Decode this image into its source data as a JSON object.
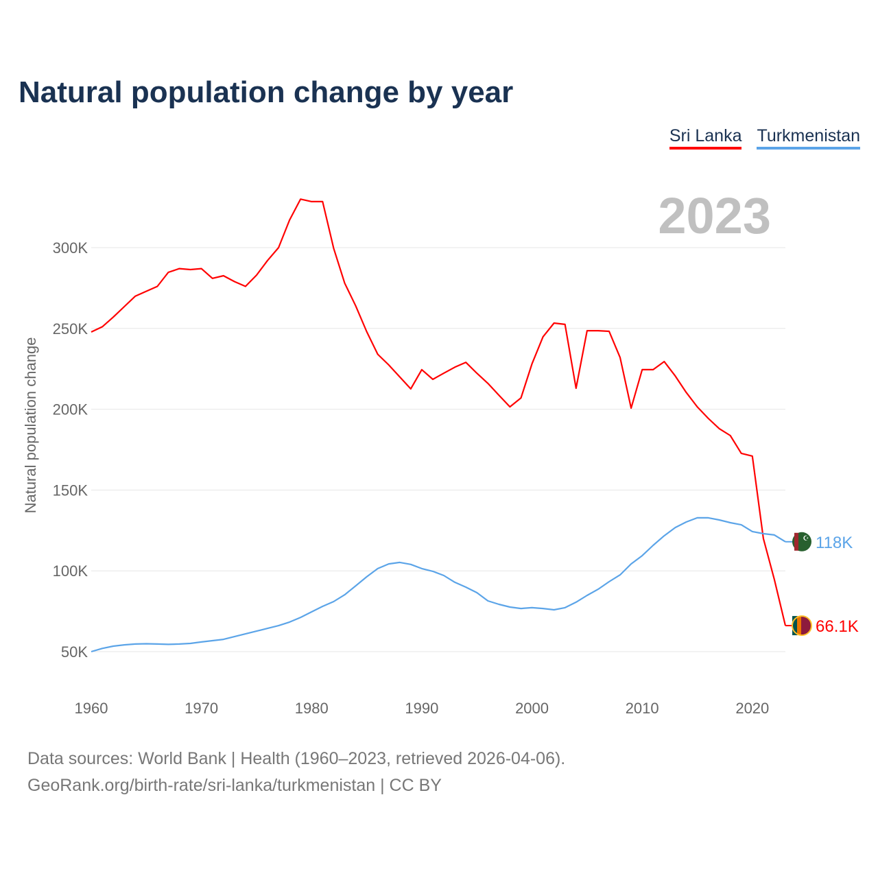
{
  "chart_data": {
    "type": "line",
    "title": "Natural population change by year",
    "xlabel": "",
    "ylabel": "Natural population change",
    "xlim": [
      1960,
      2023
    ],
    "ylim": [
      30000,
      340000
    ],
    "x_ticks": [
      1960,
      1970,
      1980,
      1990,
      2000,
      2010,
      2020
    ],
    "x_tick_labels": [
      "1960",
      "1970",
      "1980",
      "1990",
      "2000",
      "2010",
      "2020"
    ],
    "y_ticks": [
      50000,
      100000,
      150000,
      200000,
      250000,
      300000
    ],
    "y_tick_labels": [
      "50K",
      "100K",
      "150K",
      "200K",
      "250K",
      "300K"
    ],
    "grid": true,
    "legend_position": "top-right",
    "year_label": "2023",
    "x": [
      1960,
      1961,
      1962,
      1963,
      1964,
      1965,
      1966,
      1967,
      1968,
      1969,
      1970,
      1971,
      1972,
      1973,
      1974,
      1975,
      1976,
      1977,
      1978,
      1979,
      1980,
      1981,
      1982,
      1983,
      1984,
      1985,
      1986,
      1987,
      1988,
      1989,
      1990,
      1991,
      1992,
      1993,
      1994,
      1995,
      1996,
      1997,
      1998,
      1999,
      2000,
      2001,
      2002,
      2003,
      2004,
      2005,
      2006,
      2007,
      2008,
      2009,
      2010,
      2011,
      2012,
      2013,
      2014,
      2015,
      2016,
      2017,
      2018,
      2019,
      2020,
      2021,
      2022,
      2023
    ],
    "series": [
      {
        "name": "Sri Lanka",
        "color": "#ff0000",
        "end_label": "66.1K",
        "values": [
          247800,
          251000,
          257000,
          263500,
          270000,
          273000,
          276000,
          284700,
          287000,
          286400,
          287000,
          281000,
          282600,
          279000,
          276000,
          283000,
          292000,
          300000,
          317000,
          330000,
          328500,
          328500,
          299600,
          278000,
          264000,
          248000,
          234000,
          227400,
          220000,
          212600,
          224500,
          218500,
          222300,
          226000,
          229000,
          222300,
          216000,
          208700,
          201500,
          207000,
          228000,
          244800,
          253300,
          252500,
          213000,
          248600,
          248600,
          248200,
          232000,
          200700,
          224500,
          224500,
          229500,
          220600,
          210400,
          201500,
          194300,
          188000,
          183700,
          172700,
          171000,
          120000,
          94600,
          66100
        ]
      },
      {
        "name": "Turkmenistan",
        "color": "#5ba4e8",
        "end_label": "118K",
        "values": [
          50000,
          52000,
          53400,
          54200,
          54700,
          54900,
          54700,
          54500,
          54700,
          55100,
          56000,
          56800,
          57600,
          59300,
          61000,
          62700,
          64400,
          66100,
          68300,
          71200,
          74600,
          78000,
          81000,
          85200,
          90700,
          96300,
          101400,
          104300,
          105200,
          104000,
          101400,
          99700,
          97100,
          92900,
          89900,
          86500,
          81400,
          79300,
          77600,
          76700,
          77200,
          76700,
          75900,
          77200,
          80600,
          84800,
          88600,
          93300,
          97500,
          104300,
          109400,
          115800,
          121700,
          126800,
          130200,
          132800,
          132800,
          131500,
          129800,
          128500,
          124300,
          123000,
          122200,
          118000
        ]
      }
    ]
  },
  "source": {
    "line1": "Data sources: World Bank | Health (1960–2023, retrieved 2026-04-06).",
    "line2": "GeoRank.org/birth-rate/sri-lanka/turkmenistan | CC BY"
  }
}
